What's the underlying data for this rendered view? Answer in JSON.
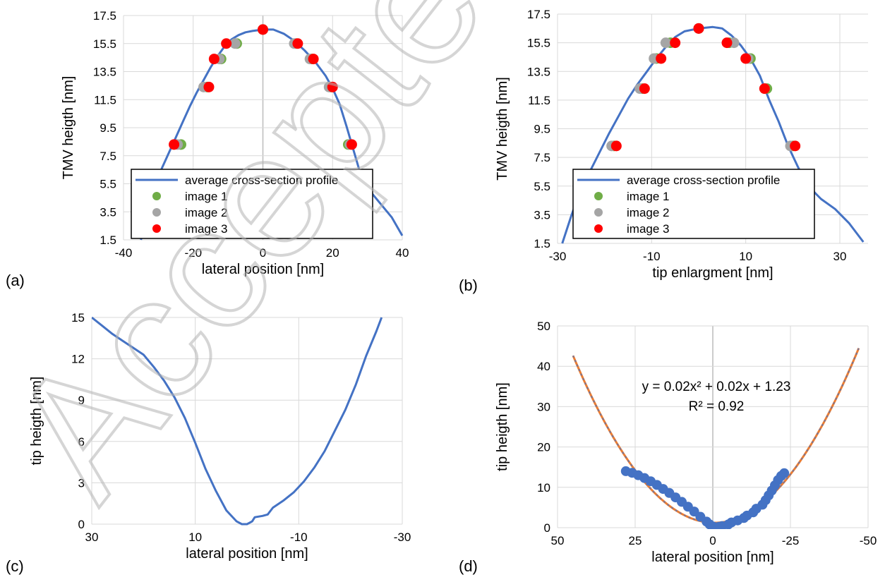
{
  "colors": {
    "line": "#4472c4",
    "fit": "#ed7d31",
    "image1": "#70ad47",
    "image2": "#a5a5a5",
    "image3": "#ff0000",
    "grid": "#d9d9d9",
    "zero": "#bfbfbf"
  },
  "watermark": {
    "text": "AcceptedManuscript"
  },
  "chart_data": [
    {
      "id": "a",
      "type": "scatter",
      "panel_label": "(a)",
      "xlabel": "lateral position [nm]",
      "ylabel": "TMV heigth [nm]",
      "xlim": [
        -40,
        40
      ],
      "ylim": [
        1.5,
        17.5
      ],
      "xticks": [
        -40,
        -20,
        0,
        20,
        40
      ],
      "yticks": [
        1.5,
        3.5,
        5.5,
        7.5,
        9.5,
        11.5,
        13.5,
        15.5,
        17.5
      ],
      "grid": true,
      "legend_position": "bottom-center",
      "legend": [
        "average cross-section profile",
        "image 1",
        "image 2",
        "image 3"
      ],
      "series": [
        {
          "name": "average cross-section profile",
          "kind": "line",
          "points": [
            [
              -35,
              1.5
            ],
            [
              -33,
              3.5
            ],
            [
              -31,
              5.3
            ],
            [
              -29,
              6.6
            ],
            [
              -27,
              7.7
            ],
            [
              -25,
              8.8
            ],
            [
              -23,
              9.9
            ],
            [
              -21,
              11.0
            ],
            [
              -19,
              12.0
            ],
            [
              -17,
              12.9
            ],
            [
              -15,
              13.8
            ],
            [
              -13,
              14.6
            ],
            [
              -11,
              15.3
            ],
            [
              -9,
              15.8
            ],
            [
              -7,
              16.1
            ],
            [
              -5,
              16.3
            ],
            [
              -3,
              16.4
            ],
            [
              0,
              16.5
            ],
            [
              3,
              16.5
            ],
            [
              6,
              16.2
            ],
            [
              9,
              15.7
            ],
            [
              12,
              15.0
            ],
            [
              15,
              14.2
            ],
            [
              18,
              13.2
            ],
            [
              20,
              12.3
            ],
            [
              22,
              11.2
            ],
            [
              24,
              9.6
            ],
            [
              26,
              7.9
            ],
            [
              28,
              6.2
            ],
            [
              31,
              4.9
            ],
            [
              34,
              4.0
            ],
            [
              37,
              3.1
            ],
            [
              40,
              1.8
            ]
          ]
        },
        {
          "name": "image 1",
          "kind": "points",
          "points": [
            [
              -23.5,
              8.3
            ],
            [
              -16,
              12.4
            ],
            [
              -12,
              14.4
            ],
            [
              -7.5,
              15.5
            ],
            [
              0,
              16.5
            ],
            [
              9.5,
              15.5
            ],
            [
              14,
              14.4
            ],
            [
              19.5,
              12.4
            ],
            [
              24.5,
              8.3
            ]
          ]
        },
        {
          "name": "image 2",
          "kind": "points",
          "points": [
            [
              -24.5,
              8.3
            ],
            [
              -17,
              12.4
            ],
            [
              -12.5,
              14.4
            ],
            [
              -8,
              15.5
            ],
            [
              0,
              16.5
            ],
            [
              9,
              15.5
            ],
            [
              13.5,
              14.4
            ],
            [
              19,
              12.4
            ],
            [
              25,
              8.3
            ]
          ]
        },
        {
          "name": "image 3",
          "kind": "points",
          "points": [
            [
              -25.5,
              8.3
            ],
            [
              -15.5,
              12.4
            ],
            [
              -14,
              14.4
            ],
            [
              -10.5,
              15.5
            ],
            [
              0,
              16.5
            ],
            [
              10,
              15.5
            ],
            [
              14.5,
              14.4
            ],
            [
              20,
              12.4
            ],
            [
              25.5,
              8.3
            ]
          ]
        }
      ]
    },
    {
      "id": "b",
      "type": "scatter",
      "panel_label": "(b)",
      "xlabel": "tip enlargment [nm]",
      "ylabel": "TMV heigth [nm]",
      "xlim": [
        -30,
        36
      ],
      "ylim": [
        1.5,
        17.5
      ],
      "xticks": [
        -30,
        -10,
        10,
        30
      ],
      "yticks": [
        1.5,
        3.5,
        5.5,
        7.5,
        9.5,
        11.5,
        13.5,
        15.5,
        17.5
      ],
      "grid": true,
      "legend_position": "bottom-center",
      "legend": [
        "average cross-section profile",
        "image 1",
        "image 2",
        "image 3"
      ],
      "series": [
        {
          "name": "average cross-section profile",
          "kind": "line",
          "points": [
            [
              -29,
              1.5
            ],
            [
              -27,
              3.5
            ],
            [
              -25,
              5.3
            ],
            [
              -23,
              6.6
            ],
            [
              -21,
              7.9
            ],
            [
              -19,
              9.2
            ],
            [
              -17,
              10.4
            ],
            [
              -15,
              11.6
            ],
            [
              -13,
              12.6
            ],
            [
              -11,
              13.5
            ],
            [
              -9,
              14.4
            ],
            [
              -7,
              15.2
            ],
            [
              -5,
              15.9
            ],
            [
              -3,
              16.3
            ],
            [
              0,
              16.5
            ],
            [
              3,
              16.6
            ],
            [
              5,
              16.5
            ],
            [
              7,
              16.0
            ],
            [
              9,
              15.3
            ],
            [
              11,
              14.4
            ],
            [
              13,
              13.2
            ],
            [
              15,
              11.5
            ],
            [
              17,
              10.0
            ],
            [
              19,
              8.3
            ],
            [
              21,
              6.9
            ],
            [
              23,
              5.6
            ],
            [
              26,
              4.6
            ],
            [
              29,
              3.9
            ],
            [
              32,
              2.9
            ],
            [
              35,
              1.6
            ]
          ]
        },
        {
          "name": "image 1",
          "kind": "points",
          "points": [
            [
              -18,
              8.3
            ],
            [
              -12,
              12.3
            ],
            [
              -9,
              14.4
            ],
            [
              -6,
              15.5
            ],
            [
              0,
              16.5
            ],
            [
              6.5,
              15.5
            ],
            [
              11,
              14.4
            ],
            [
              14.5,
              12.3
            ],
            [
              20,
              8.3
            ]
          ]
        },
        {
          "name": "image 2",
          "kind": "points",
          "points": [
            [
              -18.5,
              8.3
            ],
            [
              -12.5,
              12.3
            ],
            [
              -9.5,
              14.4
            ],
            [
              -7,
              15.5
            ],
            [
              0,
              16.5
            ],
            [
              7.5,
              15.5
            ],
            [
              10.5,
              14.4
            ],
            [
              14,
              12.3
            ],
            [
              19.5,
              8.3
            ]
          ]
        },
        {
          "name": "image 3",
          "kind": "points",
          "points": [
            [
              -17.5,
              8.3
            ],
            [
              -11.5,
              12.3
            ],
            [
              -8,
              14.4
            ],
            [
              -5,
              15.5
            ],
            [
              0,
              16.5
            ],
            [
              6,
              15.5
            ],
            [
              10,
              14.4
            ],
            [
              14,
              12.3
            ],
            [
              20.5,
              8.3
            ]
          ]
        }
      ]
    },
    {
      "id": "c",
      "type": "line",
      "panel_label": "(c)",
      "xlabel": "lateral position [nm]",
      "ylabel": "tip heigth [nm]",
      "xlim": [
        30,
        -30
      ],
      "ylim": [
        0,
        15
      ],
      "xticks": [
        30,
        10,
        -10,
        -30
      ],
      "yticks": [
        0,
        3,
        6,
        9,
        12,
        15
      ],
      "grid": true,
      "series": [
        {
          "name": "",
          "kind": "line",
          "points": [
            [
              30,
              15
            ],
            [
              28,
              14.4
            ],
            [
              26,
              13.8
            ],
            [
              24,
              13.3
            ],
            [
              22,
              12.8
            ],
            [
              20,
              12.3
            ],
            [
              18,
              11.4
            ],
            [
              16,
              10.4
            ],
            [
              14,
              9.2
            ],
            [
              12,
              7.7
            ],
            [
              10,
              5.9
            ],
            [
              8,
              4.0
            ],
            [
              6,
              2.4
            ],
            [
              4,
              1.0
            ],
            [
              2,
              0.2
            ],
            [
              1,
              0.0
            ],
            [
              0,
              0.0
            ],
            [
              -1,
              0.2
            ],
            [
              -1.5,
              0.5
            ],
            [
              -3,
              0.6
            ],
            [
              -4,
              0.7
            ],
            [
              -5,
              1.2
            ],
            [
              -7,
              1.7
            ],
            [
              -9,
              2.3
            ],
            [
              -11,
              3.1
            ],
            [
              -13,
              4.1
            ],
            [
              -15,
              5.3
            ],
            [
              -17,
              6.8
            ],
            [
              -19,
              8.3
            ],
            [
              -21,
              10.1
            ],
            [
              -23,
              12.2
            ],
            [
              -25,
              14.0
            ],
            [
              -26,
              15.0
            ]
          ]
        }
      ]
    },
    {
      "id": "d",
      "type": "scatter",
      "panel_label": "(d)",
      "xlabel": "lateral position [nm]",
      "ylabel": "tip heigth [nm]",
      "xlim": [
        50,
        -50
      ],
      "ylim": [
        0,
        50
      ],
      "xticks": [
        50,
        25,
        0,
        -25,
        -50
      ],
      "yticks": [
        0,
        10,
        20,
        30,
        40,
        50
      ],
      "grid": true,
      "annotations": [
        "y = 0.02x² + 0.02x + 1.23",
        "R² = 0.92"
      ],
      "series": [
        {
          "name": "",
          "kind": "fit",
          "coeffs": [
            0.02,
            0.02,
            1.23
          ],
          "x_range": [
            -47,
            45
          ]
        },
        {
          "name": "",
          "kind": "points",
          "points": [
            [
              28,
              14
            ],
            [
              26,
              13.6
            ],
            [
              24,
              13.0
            ],
            [
              22,
              12.3
            ],
            [
              20,
              11.5
            ],
            [
              18,
              10.6
            ],
            [
              16,
              9.6
            ],
            [
              14,
              8.6
            ],
            [
              12,
              7.5
            ],
            [
              10,
              6.4
            ],
            [
              8,
              5.2
            ],
            [
              6,
              4.0
            ],
            [
              4,
              2.7
            ],
            [
              2,
              1.5
            ],
            [
              1,
              0.8
            ],
            [
              0,
              0.3
            ],
            [
              -1,
              0.1
            ],
            [
              -2,
              0.2
            ],
            [
              -3,
              0.4
            ],
            [
              -5,
              0.8
            ],
            [
              -6,
              1.3
            ],
            [
              -8,
              1.8
            ],
            [
              -10,
              2.4
            ],
            [
              -11,
              3.0
            ],
            [
              -13,
              3.8
            ],
            [
              -14,
              4.7
            ],
            [
              -16,
              5.7
            ],
            [
              -17,
              6.8
            ],
            [
              -18,
              8.0
            ],
            [
              -19,
              9.2
            ],
            [
              -20,
              10.5
            ],
            [
              -21,
              11.8
            ],
            [
              -22,
              12.8
            ],
            [
              -23,
              13.5
            ]
          ]
        }
      ]
    }
  ]
}
